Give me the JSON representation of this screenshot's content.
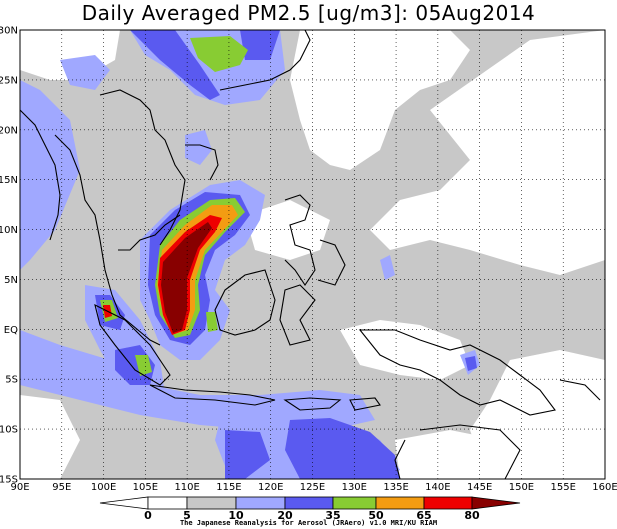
{
  "title": "Daily Averaged PM2.5 [ug/m3]: 05Aug2014",
  "map": {
    "lon_range": [
      90,
      160
    ],
    "lat_range": [
      -15,
      30
    ],
    "grid": "dotted",
    "lon_labels": [
      "90E",
      "95E",
      "100E",
      "105E",
      "110E",
      "115E",
      "120E",
      "125E",
      "130E",
      "135E",
      "140E",
      "145E",
      "150E",
      "155E",
      "160E"
    ],
    "lat_labels": [
      "30N",
      "25N",
      "20N",
      "15N",
      "10N",
      "5N",
      "EQ",
      "5S",
      "10S",
      "15S"
    ]
  },
  "colorbar": {
    "levels": [
      "0",
      "5",
      "10",
      "20",
      "35",
      "50",
      "65",
      "80"
    ],
    "colors": [
      "#ffffff",
      "#c8c8c8",
      "#a0a8ff",
      "#5a5af0",
      "#88cc33",
      "#f39c12",
      "#ee0000",
      "#880000"
    ]
  },
  "credit": "The Japanese Reanalysis for Aerosol (JRAero) v1.0 MRI/KU RIAM"
}
